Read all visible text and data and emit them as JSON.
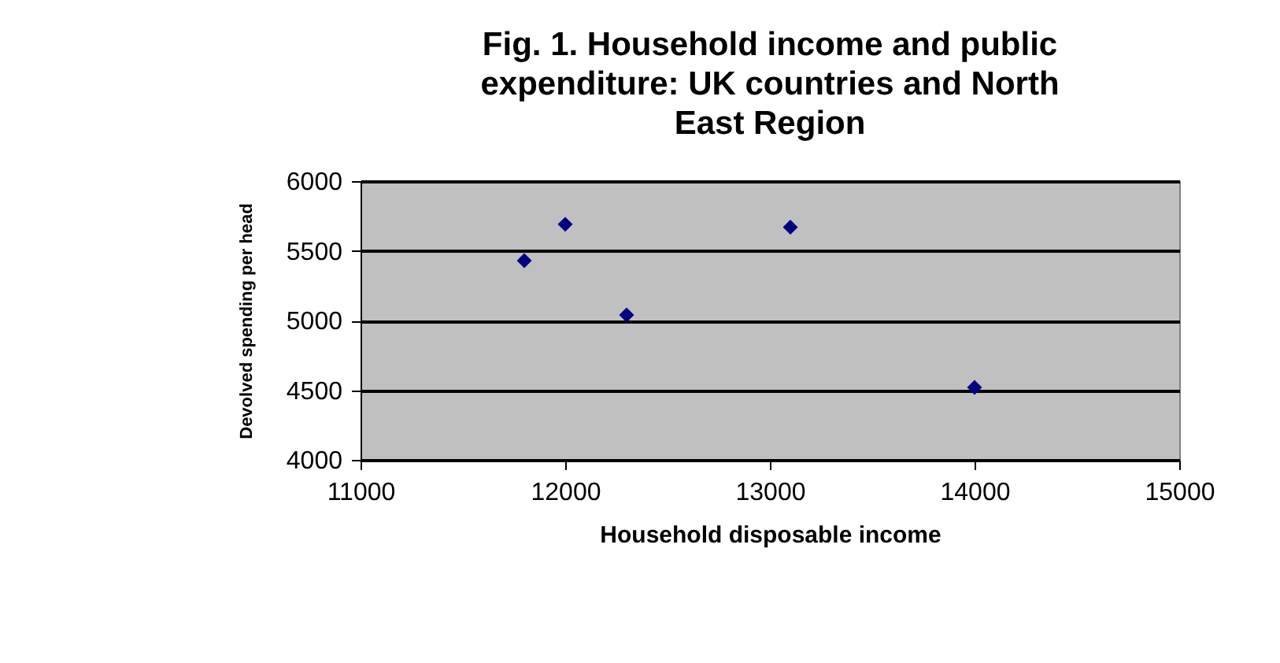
{
  "chart_data": {
    "type": "scatter",
    "title": "Fig. 1. Household income and public expenditure: UK countries and North East Region",
    "xlabel": "Household disposable income",
    "ylabel": "Devolved spending per head",
    "x": [
      11800,
      12000,
      12300,
      13100,
      14000
    ],
    "series": [
      {
        "color": "#000080",
        "values": [
          5430,
          5690,
          5040,
          5670,
          4520
        ]
      }
    ],
    "xlim": [
      11000,
      15000
    ],
    "xticks": [
      11000,
      12000,
      13000,
      14000,
      15000
    ],
    "ylim": [
      4000,
      6000
    ],
    "yticks": [
      4000,
      4500,
      5000,
      5500,
      6000
    ],
    "grid": "y",
    "marker": "diamond"
  }
}
